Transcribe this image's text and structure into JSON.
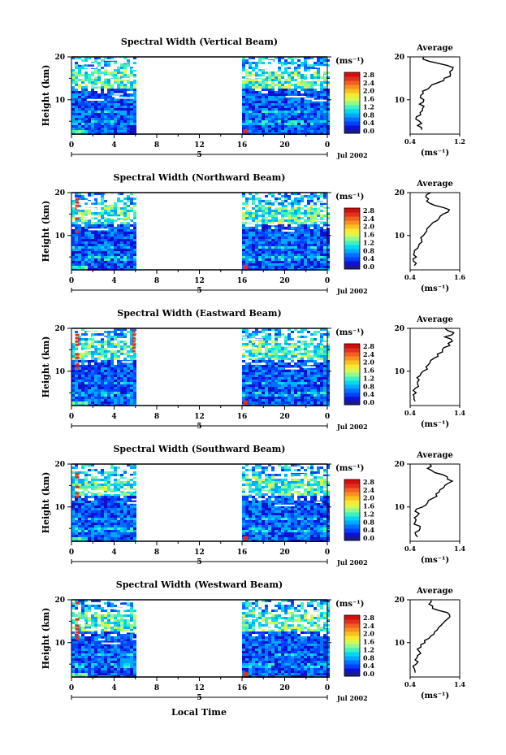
{
  "figure": {
    "xlabel_bottom": "Local Time",
    "date_label": "Jul 2002",
    "day_label": "5",
    "xticks": [
      "0",
      "4",
      "8",
      "12",
      "16",
      "20",
      "0"
    ],
    "yticks": [
      "20",
      "10"
    ],
    "ylabel": "Height (km)",
    "unit_label": "(ms⁻¹)",
    "colorbar_ticks": [
      "2.8",
      "2.4",
      "2.0",
      "1.6",
      "1.2",
      "0.8",
      "0.4",
      "0.0"
    ],
    "colorbar_colors": [
      "#1a1a8c",
      "#1010d0",
      "#0040ff",
      "#0070ff",
      "#00a8ff",
      "#00d8f0",
      "#40f0c0",
      "#90f890",
      "#d8f850",
      "#f8e830",
      "#f8c020",
      "#f89020",
      "#f06020",
      "#e03020",
      "#d01010"
    ],
    "avg_title": "Average",
    "avg_yticks": [
      "20",
      "10"
    ],
    "avg_xlabel": "(ms⁻¹)"
  },
  "chart_data": [
    {
      "type": "heatmap",
      "title": "Spectral Width (Vertical Beam)",
      "xlabel": "Local Time",
      "ylabel": "Height (km)",
      "xlim": [
        0,
        24
      ],
      "ylim": [
        2,
        20
      ],
      "data_segments": [
        [
          0,
          6
        ],
        [
          16,
          24
        ]
      ],
      "colorbar_range": [
        0.0,
        3.0
      ],
      "average_profile": {
        "title": "Average",
        "xlim": [
          0.4,
          1.2
        ],
        "xticks": [
          "0.4",
          "1.2"
        ],
        "height": [
          3,
          4,
          5,
          6,
          7,
          8,
          9,
          10,
          11,
          12,
          13,
          14,
          15,
          16,
          17,
          18,
          19,
          20
        ],
        "value": [
          0.58,
          0.52,
          0.55,
          0.5,
          0.56,
          0.6,
          0.55,
          0.62,
          0.57,
          0.6,
          0.72,
          0.85,
          0.95,
          1.05,
          1.08,
          1.0,
          0.7,
          0.62
        ]
      }
    },
    {
      "type": "heatmap",
      "title": "Spectral Width (Northward Beam)",
      "xlabel": "Local Time",
      "ylabel": "Height (km)",
      "xlim": [
        0,
        24
      ],
      "ylim": [
        2,
        20
      ],
      "data_segments": [
        [
          0,
          6
        ],
        [
          16,
          24
        ]
      ],
      "colorbar_range": [
        0.0,
        3.0
      ],
      "average_profile": {
        "title": "Average",
        "xlim": [
          0.4,
          1.6
        ],
        "xticks": [
          "0.4",
          "1.6"
        ],
        "height": [
          3,
          4,
          5,
          6,
          7,
          8,
          9,
          10,
          11,
          12,
          13,
          14,
          15,
          16,
          17,
          18,
          19,
          20
        ],
        "value": [
          0.5,
          0.48,
          0.55,
          0.5,
          0.58,
          0.62,
          0.68,
          0.72,
          0.8,
          0.85,
          0.95,
          1.1,
          1.2,
          1.35,
          1.0,
          0.8,
          0.78,
          0.9
        ]
      }
    },
    {
      "type": "heatmap",
      "title": "Spectral Width (Eastward Beam)",
      "xlabel": "Local Time",
      "ylabel": "Height (km)",
      "xlim": [
        0,
        24
      ],
      "ylim": [
        2,
        20
      ],
      "data_segments": [
        [
          0,
          6
        ],
        [
          16,
          24
        ]
      ],
      "colorbar_range": [
        0.0,
        3.0
      ],
      "average_profile": {
        "title": "Average",
        "xlim": [
          0.4,
          1.4
        ],
        "xticks": [
          "0.4",
          "1.4"
        ],
        "height": [
          3,
          4,
          5,
          6,
          7,
          8,
          9,
          10,
          11,
          12,
          13,
          14,
          15,
          16,
          17,
          18,
          19,
          20
        ],
        "value": [
          0.5,
          0.48,
          0.52,
          0.5,
          0.55,
          0.58,
          0.6,
          0.66,
          0.72,
          0.8,
          0.88,
          0.95,
          1.05,
          1.2,
          1.25,
          1.1,
          1.28,
          1.1
        ]
      }
    },
    {
      "type": "heatmap",
      "title": "Spectral Width (Southward Beam)",
      "xlabel": "Local Time",
      "ylabel": "Height (km)",
      "xlim": [
        0,
        24
      ],
      "ylim": [
        2,
        20
      ],
      "data_segments": [
        [
          0,
          6
        ],
        [
          16,
          24
        ]
      ],
      "colorbar_range": [
        0.0,
        3.0
      ],
      "average_profile": {
        "title": "Average",
        "xlim": [
          0.4,
          1.4
        ],
        "xticks": [
          "0.4",
          "1.4"
        ],
        "height": [
          3,
          4,
          5,
          6,
          7,
          8,
          9,
          10,
          11,
          12,
          13,
          14,
          15,
          16,
          17,
          18,
          19,
          20
        ],
        "value": [
          0.55,
          0.5,
          0.6,
          0.48,
          0.52,
          0.55,
          0.5,
          0.65,
          0.75,
          0.85,
          0.92,
          1.0,
          1.1,
          1.25,
          1.15,
          0.9,
          0.75,
          0.8
        ]
      }
    },
    {
      "type": "heatmap",
      "title": "Spectral Width (Westward Beam)",
      "xlabel": "Local Time",
      "ylabel": "Height (km)",
      "xlim": [
        0,
        24
      ],
      "ylim": [
        2,
        20
      ],
      "data_segments": [
        [
          0,
          6
        ],
        [
          16,
          24
        ]
      ],
      "colorbar_range": [
        0.0,
        3.0
      ],
      "average_profile": {
        "title": "Average",
        "xlim": [
          0.4,
          1.4
        ],
        "xticks": [
          "0.4",
          "1.4"
        ],
        "height": [
          3,
          4,
          5,
          6,
          7,
          8,
          9,
          10,
          11,
          12,
          13,
          14,
          15,
          16,
          17,
          18,
          19,
          20
        ],
        "value": [
          0.5,
          0.48,
          0.52,
          0.5,
          0.55,
          0.58,
          0.62,
          0.7,
          0.78,
          0.88,
          0.95,
          1.02,
          1.1,
          1.2,
          1.15,
          0.85,
          0.78,
          0.82
        ]
      }
    }
  ]
}
